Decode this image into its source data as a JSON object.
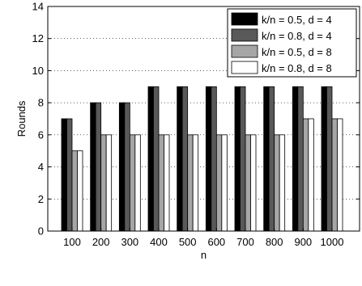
{
  "chart_data": {
    "type": "bar",
    "categories": [
      "100",
      "200",
      "300",
      "400",
      "500",
      "600",
      "700",
      "800",
      "900",
      "1000"
    ],
    "series": [
      {
        "name": "k/n = 0.5, d = 4",
        "color": "#000000",
        "values": [
          7,
          8,
          8,
          9,
          9,
          9,
          9,
          9,
          9,
          9
        ]
      },
      {
        "name": "k/n = 0.8, d = 4",
        "color": "#595959",
        "values": [
          7,
          8,
          8,
          9,
          9,
          9,
          9,
          9,
          9,
          9
        ]
      },
      {
        "name": "k/n = 0.5, d = 8",
        "color": "#a6a6a6",
        "values": [
          5,
          6,
          6,
          6,
          6,
          6,
          6,
          6,
          7,
          7
        ]
      },
      {
        "name": "k/n = 0.8, d = 8",
        "color": "#ffffff",
        "values": [
          5,
          6,
          6,
          6,
          6,
          6,
          6,
          6,
          7,
          7
        ]
      }
    ],
    "xlabel": "n",
    "ylabel": "Rounds",
    "ylim": [
      0,
      14
    ],
    "yticks": [
      "0",
      "2",
      "4",
      "6",
      "8",
      "10",
      "12",
      "14"
    ],
    "grid": "horizontal dotted",
    "legend_position": "top-right"
  }
}
